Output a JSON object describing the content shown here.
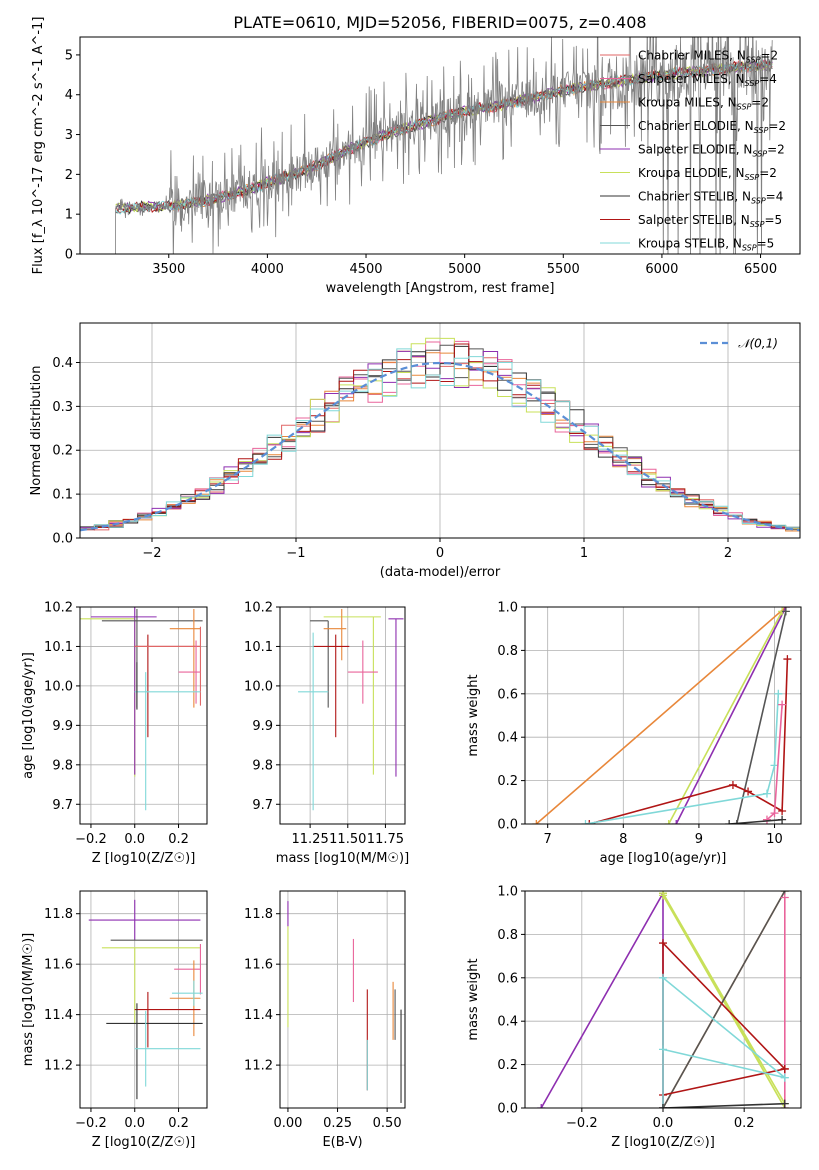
{
  "figure": {
    "title": "PLATE=0610, MJD=52056, FIBERID=0075, z=0.408"
  },
  "colors": {
    "data_gray": "#808080",
    "normal_curve": "#5b8fd6",
    "models": [
      "#f39c12",
      "#e9649b",
      "#ff7f0e",
      "#555555",
      "#8e2fb0",
      "#c8e05a",
      "#333333",
      "#b01515",
      "#80d8d8"
    ]
  },
  "models": [
    {
      "name": "Chabrier MILES",
      "n_ssp": "2",
      "color": "#e06666"
    },
    {
      "name": "Salpeter MILES",
      "n_ssp": "4",
      "color": "#e9649b"
    },
    {
      "name": "Kroupa MILES",
      "n_ssp": "2",
      "color": "#e8873a"
    },
    {
      "name": "Chabrier ELODIE",
      "n_ssp": "2",
      "color": "#555555"
    },
    {
      "name": "Salpeter ELODIE",
      "n_ssp": "2",
      "color": "#8e2fb0"
    },
    {
      "name": "Kroupa ELODIE",
      "n_ssp": "2",
      "color": "#c8e05a"
    },
    {
      "name": "Chabrier STELIB",
      "n_ssp": "4",
      "color": "#333333"
    },
    {
      "name": "Salpeter STELIB",
      "n_ssp": "5",
      "color": "#b01515"
    },
    {
      "name": "Kroupa STELIB",
      "n_ssp": "5",
      "color": "#80d8d8"
    }
  ],
  "chart_data": [
    {
      "id": "spectrum",
      "type": "line",
      "title": "PLATE=0610, MJD=52056, FIBERID=0075, z=0.408",
      "xlabel": "wavelength [Angstrom, rest frame]",
      "ylabel": "Flux [f_λ 10^-17 erg cm^-2 s^-1 A^-1]",
      "xlim": [
        3050,
        6700
      ],
      "ylim": [
        0,
        5.45
      ],
      "xticks": [
        "3500",
        "4000",
        "4500",
        "5000",
        "5500",
        "6000",
        "6500"
      ],
      "yticks": [
        "0",
        "1",
        "2",
        "3",
        "4",
        "5"
      ],
      "legend_position": "top-right",
      "continuum_points": [
        [
          3230,
          1.15
        ],
        [
          3500,
          1.2
        ],
        [
          3700,
          1.35
        ],
        [
          3900,
          1.6
        ],
        [
          4000,
          1.8
        ],
        [
          4200,
          2.1
        ],
        [
          4400,
          2.6
        ],
        [
          4600,
          3.0
        ],
        [
          4800,
          3.3
        ],
        [
          5000,
          3.6
        ],
        [
          5200,
          3.75
        ],
        [
          5400,
          4.0
        ],
        [
          5600,
          4.2
        ],
        [
          5800,
          4.35
        ],
        [
          6000,
          4.5
        ],
        [
          6200,
          4.6
        ],
        [
          6400,
          4.7
        ],
        [
          6560,
          4.75
        ]
      ]
    },
    {
      "id": "residuals",
      "type": "line",
      "xlabel": "(data-model)/error",
      "ylabel": "Normed distribution",
      "xlim": [
        -2.5,
        2.5
      ],
      "ylim": [
        0,
        0.49
      ],
      "xticks": [
        "−2",
        "−1",
        "0",
        "1",
        "2"
      ],
      "yticks": [
        "0.0",
        "0.1",
        "0.2",
        "0.3",
        "0.4"
      ],
      "grid": true,
      "legend_position": "top-right",
      "series": [
        {
          "name": "N(0,1)",
          "label_text": "𝒩(0,1)",
          "mean": 0,
          "sigma": 1
        }
      ]
    },
    {
      "id": "age_vs_Z",
      "type": "scatter",
      "xlabel": "Z [log10(Z/Z☉)]",
      "ylabel": "age  [log10(age/yr)]",
      "xlim": [
        -0.25,
        0.33
      ],
      "ylim": [
        9.65,
        10.2
      ],
      "xticks": [
        "−0.2",
        "0.0",
        "0.2"
      ],
      "yticks": [
        "9.7",
        "9.8",
        "9.9",
        "10.0",
        "10.1",
        "10.2"
      ],
      "grid": true,
      "points": [
        {
          "x": 0.0,
          "y": 10.17,
          "xerr": [
            0.31,
            0.0
          ],
          "yerr": [
            0.4,
            0.0
          ],
          "model": 5
        },
        {
          "x": 0.0,
          "y": 10.175,
          "xerr": [
            0.2,
            0.1
          ],
          "yerr": [
            0.4,
            0.05
          ],
          "model": 4
        },
        {
          "x": 0.01,
          "y": 10.165,
          "xerr": [
            0.16,
            0.3
          ],
          "yerr": [
            0.22,
            0.03
          ],
          "model": 3
        },
        {
          "x": 0.27,
          "y": 10.145,
          "xerr": [
            0.11,
            0.03
          ],
          "yerr": [
            0.2,
            0.05
          ],
          "model": 2
        },
        {
          "x": 0.06,
          "y": 10.1,
          "xerr": [
            0.06,
            0.24
          ],
          "yerr": [
            0.23,
            0.03
          ],
          "model": 7
        },
        {
          "x": 0.3,
          "y": 10.1,
          "xerr": [
            0.3,
            0.0
          ],
          "yerr": [
            0.15,
            0.05
          ],
          "model": 0
        },
        {
          "x": 0.28,
          "y": 10.035,
          "xerr": [
            0.08,
            0.02
          ],
          "yerr": [
            0.08,
            0.08
          ],
          "model": 1
        },
        {
          "x": 0.05,
          "y": 9.985,
          "xerr": [
            0.05,
            0.25
          ],
          "yerr": [
            0.3,
            0.05
          ],
          "model": 8
        },
        {
          "x": 0.01,
          "y": 10.0,
          "xerr": [
            0.0,
            0.0
          ],
          "yerr": [
            0.06,
            0.06
          ],
          "model": 6
        }
      ]
    },
    {
      "id": "age_vs_mass",
      "type": "scatter",
      "xlabel": "mass [log10(M/M☉)]",
      "ylabel": "",
      "xlim": [
        11.05,
        11.88
      ],
      "ylim": [
        9.65,
        10.2
      ],
      "xticks": [
        "11.25",
        "11.50",
        "11.75"
      ],
      "yticks": [
        "9.7",
        "9.8",
        "9.9",
        "10.0",
        "10.1",
        "10.2"
      ],
      "grid": true,
      "points": [
        {
          "x": 11.82,
          "y": 10.17,
          "xerr": [
            0.05,
            0.05
          ],
          "yerr": [
            0.4,
            0.0
          ],
          "model": 4
        },
        {
          "x": 11.67,
          "y": 10.175,
          "xerr": [
            0.33,
            0.05
          ],
          "yerr": [
            0.4,
            0.0
          ],
          "model": 5
        },
        {
          "x": 11.37,
          "y": 10.165,
          "xerr": [
            0.12,
            0.0
          ],
          "yerr": [
            0.22,
            0.0
          ],
          "model": 3
        },
        {
          "x": 11.46,
          "y": 10.145,
          "xerr": [
            0.12,
            0.03
          ],
          "yerr": [
            0.08,
            0.05
          ],
          "model": 2
        },
        {
          "x": 11.42,
          "y": 10.1,
          "xerr": [
            0.15,
            0.09
          ],
          "yerr": [
            0.23,
            0.03
          ],
          "model": 7
        },
        {
          "x": 11.6,
          "y": 10.035,
          "xerr": [
            0.1,
            0.1
          ],
          "yerr": [
            0.08,
            0.08
          ],
          "model": 1
        },
        {
          "x": 11.27,
          "y": 9.985,
          "xerr": [
            0.1,
            0.1
          ],
          "yerr": [
            0.3,
            0.15
          ],
          "model": 8
        }
      ]
    },
    {
      "id": "mass_weight_vs_age",
      "type": "line",
      "xlabel": "age  [log10(age/yr)]",
      "ylabel": "mass weight",
      "xlim": [
        6.7,
        10.35
      ],
      "ylim": [
        0,
        1
      ],
      "xticks": [
        "7",
        "8",
        "9",
        "10"
      ],
      "yticks": [
        "0.0",
        "0.2",
        "0.4",
        "0.6",
        "0.8",
        "1.0"
      ],
      "grid": true,
      "series": [
        {
          "model": 2,
          "x": [
            6.85,
            10.15
          ],
          "y": [
            0.0,
            1.0
          ]
        },
        {
          "model": 4,
          "x": [
            8.7,
            10.15
          ],
          "y": [
            0.0,
            1.0
          ]
        },
        {
          "model": 5,
          "x": [
            8.6,
            10.1
          ],
          "y": [
            0.0,
            0.98
          ]
        },
        {
          "model": 3,
          "x": [
            9.5,
            10.15
          ],
          "y": [
            0.0,
            0.98
          ]
        },
        {
          "model": 7,
          "x": [
            7.55,
            9.45,
            9.65,
            10.1,
            10.17
          ],
          "y": [
            0.0,
            0.18,
            0.15,
            0.06,
            0.76
          ]
        },
        {
          "model": 8,
          "x": [
            7.5,
            9.9,
            10.0,
            10.05
          ],
          "y": [
            0.0,
            0.14,
            0.27,
            0.6
          ]
        },
        {
          "model": 1,
          "x": [
            9.9,
            10.0,
            10.1
          ],
          "y": [
            0.02,
            0.05,
            0.55
          ]
        },
        {
          "model": 6,
          "x": [
            9.4,
            10.1
          ],
          "y": [
            0.0,
            0.02
          ]
        }
      ]
    },
    {
      "id": "mass_vs_Z",
      "type": "scatter",
      "xlabel": "Z [log10(Z/Z☉)]",
      "ylabel": "mass [log10(M/M☉)]",
      "xlim": [
        -0.25,
        0.33
      ],
      "ylim": [
        11.03,
        11.89
      ],
      "xticks": [
        "−0.2",
        "0.0",
        "0.2"
      ],
      "yticks": [
        "11.2",
        "11.4",
        "11.6",
        "11.8"
      ],
      "grid": true,
      "points": [
        {
          "x": 0.0,
          "y": 11.775,
          "xerr": [
            0.21,
            0.3
          ],
          "yerr": [
            0.08,
            0.08
          ],
          "model": 4
        },
        {
          "x": 0.01,
          "y": 11.695,
          "xerr": [
            0.12,
            0.3
          ],
          "yerr": [
            0.0,
            0.0
          ],
          "model": 3
        },
        {
          "x": 0.0,
          "y": 11.665,
          "xerr": [
            0.15,
            0.3
          ],
          "yerr": [
            0.3,
            0.0
          ],
          "model": 5
        },
        {
          "x": 0.3,
          "y": 11.58,
          "xerr": [
            0.12,
            0.0
          ],
          "yerr": [
            0.1,
            0.1
          ],
          "model": 1
        },
        {
          "x": 0.27,
          "y": 11.465,
          "xerr": [
            0.11,
            0.03
          ],
          "yerr": [
            0.15,
            0.15
          ],
          "model": 2
        },
        {
          "x": 0.27,
          "y": 11.485,
          "xerr": [
            0.1,
            0.04
          ],
          "yerr": [
            0.05,
            0.05
          ],
          "model": 8
        },
        {
          "x": 0.06,
          "y": 11.42,
          "xerr": [
            0.06,
            0.24
          ],
          "yerr": [
            0.15,
            0.07
          ],
          "model": 7
        },
        {
          "x": 0.01,
          "y": 11.365,
          "xerr": [
            0.14,
            0.3
          ],
          "yerr": [
            0.3,
            0.08
          ],
          "model": 6
        },
        {
          "x": 0.05,
          "y": 11.265,
          "xerr": [
            0.05,
            0.25
          ],
          "yerr": [
            0.15,
            0.15
          ],
          "model": 8
        }
      ]
    },
    {
      "id": "mass_vs_EBV",
      "type": "scatter",
      "xlabel": "E(B-V)",
      "ylabel": "",
      "xlim": [
        -0.04,
        0.59
      ],
      "ylim": [
        11.03,
        11.89
      ],
      "xticks": [
        "0.00",
        "0.25",
        "0.50"
      ],
      "yticks": [
        "11.2",
        "11.4",
        "11.6",
        "11.8"
      ],
      "grid": true,
      "points": [
        {
          "x": 0.0,
          "y": 11.8,
          "yerr": [
            0.05,
            0.05
          ],
          "model": 4
        },
        {
          "x": 0.0,
          "y": 11.6,
          "yerr": [
            0.25,
            0.15
          ],
          "model": 5
        },
        {
          "x": 0.33,
          "y": 11.6,
          "yerr": [
            0.15,
            0.1
          ],
          "model": 1
        },
        {
          "x": 0.4,
          "y": 11.4,
          "yerr": [
            0.3,
            0.1
          ],
          "model": 7
        },
        {
          "x": 0.4,
          "y": 11.2,
          "yerr": [
            0.1,
            0.1
          ],
          "model": 8
        },
        {
          "x": 0.53,
          "y": 11.45,
          "yerr": [
            0.15,
            0.08
          ],
          "model": 2
        },
        {
          "x": 0.54,
          "y": 11.4,
          "yerr": [
            0.1,
            0.1
          ],
          "model": 3
        },
        {
          "x": 0.57,
          "y": 11.25,
          "yerr": [
            0.2,
            0.17
          ],
          "model": 6
        }
      ]
    },
    {
      "id": "mass_weight_vs_Z",
      "type": "line",
      "xlabel": "Z [log10(Z/Z☉)]",
      "ylabel": "mass weight",
      "xlim": [
        -0.34,
        0.34
      ],
      "ylim": [
        0,
        1
      ],
      "xticks": [
        "−0.2",
        "0.0",
        "0.2"
      ],
      "yticks": [
        "0.0",
        "0.2",
        "0.4",
        "0.6",
        "0.8",
        "1.0"
      ],
      "grid": true,
      "series": [
        {
          "model": 4,
          "x": [
            -0.3,
            0.0,
            0.0
          ],
          "y": [
            0.0,
            0.99,
            0.0
          ]
        },
        {
          "model": 5,
          "x": [
            0.0,
            0.3,
            0.0,
            0.3
          ],
          "y": [
            0.98,
            0.0,
            0.99,
            0.02
          ]
        },
        {
          "model": 2,
          "x": [
            0.0,
            0.3
          ],
          "y": [
            0.0,
            1.0
          ]
        },
        {
          "model": 3,
          "x": [
            0.0,
            0.3,
            0.0
          ],
          "y": [
            0.0,
            1.0,
            0.0
          ]
        },
        {
          "model": 1,
          "x": [
            0.3,
            0.3
          ],
          "y": [
            0.0,
            0.97
          ]
        },
        {
          "model": 7,
          "x": [
            0.0,
            0.0,
            0.3
          ],
          "y": [
            0.0,
            0.76,
            0.18
          ]
        },
        {
          "model": 7,
          "x": [
            0.0,
            0.3
          ],
          "y": [
            0.06,
            0.18
          ]
        },
        {
          "model": 8,
          "x": [
            0.0,
            0.0,
            0.3
          ],
          "y": [
            0.0,
            0.6,
            0.14
          ]
        },
        {
          "model": 8,
          "x": [
            0.0,
            0.3
          ],
          "y": [
            0.27,
            0.14
          ]
        },
        {
          "model": 6,
          "x": [
            0.0,
            0.3
          ],
          "y": [
            0.0,
            0.02
          ]
        }
      ]
    }
  ]
}
